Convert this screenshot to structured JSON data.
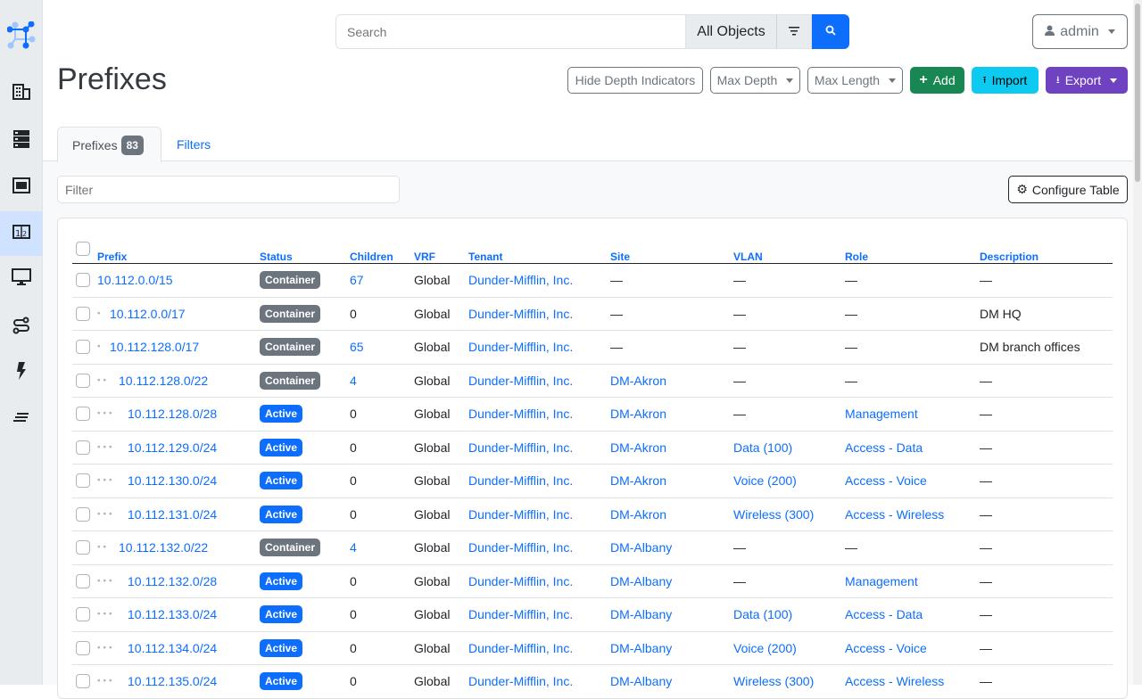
{
  "search": {
    "placeholder": "Search",
    "scope": "All Objects"
  },
  "user": {
    "name": "admin"
  },
  "page": {
    "title": "Prefixes"
  },
  "actions": {
    "hide_depth": "Hide Depth Indicators",
    "max_depth": "Max Depth",
    "max_length": "Max Length",
    "add": "Add",
    "import": "Import",
    "export": "Export"
  },
  "colors": {
    "add": "#198754",
    "import": "#0dcaf0",
    "export": "#6f42c1",
    "primary": "#0d6efd",
    "container": "#6c757d",
    "active": "#0d6efd"
  },
  "tabs": {
    "prefixes": "Prefixes",
    "count": "83",
    "filters": "Filters"
  },
  "filter": {
    "placeholder": "Filter"
  },
  "configure": "Configure Table",
  "columns": [
    "Prefix",
    "Status",
    "Children",
    "VRF",
    "Tenant",
    "Site",
    "VLAN",
    "Role",
    "Description"
  ],
  "rows": [
    {
      "depth": 0,
      "prefix": "10.112.0.0/15",
      "status": "Container",
      "children": "67",
      "vrf": "Global",
      "tenant": "Dunder-Mifflin, Inc.",
      "site": "—",
      "vlan": "—",
      "role": "—",
      "description": "—"
    },
    {
      "depth": 1,
      "prefix": "10.112.0.0/17",
      "status": "Container",
      "children": "0",
      "vrf": "Global",
      "tenant": "Dunder-Mifflin, Inc.",
      "site": "—",
      "vlan": "—",
      "role": "—",
      "description": "DM HQ"
    },
    {
      "depth": 1,
      "prefix": "10.112.128.0/17",
      "status": "Container",
      "children": "65",
      "vrf": "Global",
      "tenant": "Dunder-Mifflin, Inc.",
      "site": "—",
      "vlan": "—",
      "role": "—",
      "description": "DM branch offices"
    },
    {
      "depth": 2,
      "prefix": "10.112.128.0/22",
      "status": "Container",
      "children": "4",
      "vrf": "Global",
      "tenant": "Dunder-Mifflin, Inc.",
      "site": "DM-Akron",
      "vlan": "—",
      "role": "—",
      "description": "—"
    },
    {
      "depth": 3,
      "prefix": "10.112.128.0/28",
      "status": "Active",
      "children": "0",
      "vrf": "Global",
      "tenant": "Dunder-Mifflin, Inc.",
      "site": "DM-Akron",
      "vlan": "—",
      "role": "Management",
      "description": "—"
    },
    {
      "depth": 3,
      "prefix": "10.112.129.0/24",
      "status": "Active",
      "children": "0",
      "vrf": "Global",
      "tenant": "Dunder-Mifflin, Inc.",
      "site": "DM-Akron",
      "vlan": "Data (100)",
      "role": "Access - Data",
      "description": "—"
    },
    {
      "depth": 3,
      "prefix": "10.112.130.0/24",
      "status": "Active",
      "children": "0",
      "vrf": "Global",
      "tenant": "Dunder-Mifflin, Inc.",
      "site": "DM-Akron",
      "vlan": "Voice (200)",
      "role": "Access - Voice",
      "description": "—"
    },
    {
      "depth": 3,
      "prefix": "10.112.131.0/24",
      "status": "Active",
      "children": "0",
      "vrf": "Global",
      "tenant": "Dunder-Mifflin, Inc.",
      "site": "DM-Akron",
      "vlan": "Wireless (300)",
      "role": "Access - Wireless",
      "description": "—"
    },
    {
      "depth": 2,
      "prefix": "10.112.132.0/22",
      "status": "Container",
      "children": "4",
      "vrf": "Global",
      "tenant": "Dunder-Mifflin, Inc.",
      "site": "DM-Albany",
      "vlan": "—",
      "role": "—",
      "description": "—"
    },
    {
      "depth": 3,
      "prefix": "10.112.132.0/28",
      "status": "Active",
      "children": "0",
      "vrf": "Global",
      "tenant": "Dunder-Mifflin, Inc.",
      "site": "DM-Albany",
      "vlan": "—",
      "role": "Management",
      "description": "—"
    },
    {
      "depth": 3,
      "prefix": "10.112.133.0/24",
      "status": "Active",
      "children": "0",
      "vrf": "Global",
      "tenant": "Dunder-Mifflin, Inc.",
      "site": "DM-Albany",
      "vlan": "Data (100)",
      "role": "Access - Data",
      "description": "—"
    },
    {
      "depth": 3,
      "prefix": "10.112.134.0/24",
      "status": "Active",
      "children": "0",
      "vrf": "Global",
      "tenant": "Dunder-Mifflin, Inc.",
      "site": "DM-Albany",
      "vlan": "Voice (200)",
      "role": "Access - Voice",
      "description": "—"
    },
    {
      "depth": 3,
      "prefix": "10.112.135.0/24",
      "status": "Active",
      "children": "0",
      "vrf": "Global",
      "tenant": "Dunder-Mifflin, Inc.",
      "site": "DM-Albany",
      "vlan": "Wireless (300)",
      "role": "Access - Wireless",
      "description": "—"
    }
  ]
}
